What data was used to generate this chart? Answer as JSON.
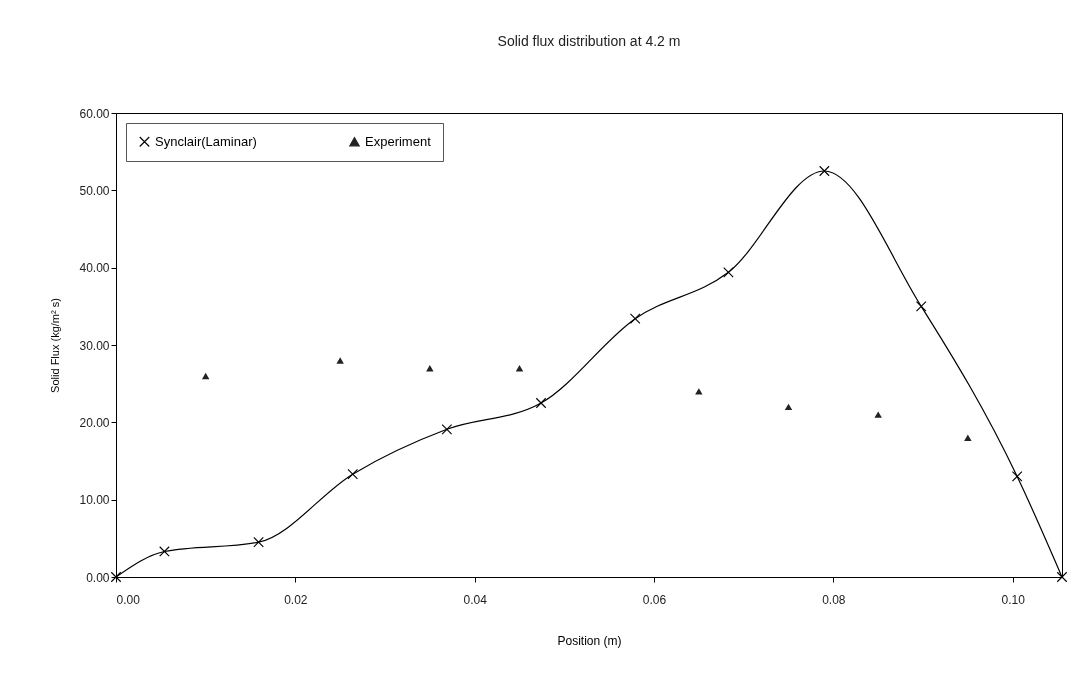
{
  "chart_data": {
    "type": "line",
    "title": "Solid flux distribution at 4.2 m",
    "xlabel": "Position (m)",
    "ylabel": "Solid Flux (kg/m² s)",
    "xlim": [
      0,
      0.1055
    ],
    "ylim": [
      0,
      60
    ],
    "xticks": [
      {
        "value": 0,
        "label": "0.00"
      },
      {
        "value": 0.02,
        "label": "0.02"
      },
      {
        "value": 0.04,
        "label": "0.04"
      },
      {
        "value": 0.06,
        "label": "0.06"
      },
      {
        "value": 0.08,
        "label": "0.08"
      },
      {
        "value": 0.1,
        "label": "0.10"
      }
    ],
    "yticks": [
      {
        "value": 0,
        "label": "0.00"
      },
      {
        "value": 10,
        "label": "10.00"
      },
      {
        "value": 20,
        "label": "20.00"
      },
      {
        "value": 30,
        "label": "30.00"
      },
      {
        "value": 40,
        "label": "40.00"
      },
      {
        "value": 50,
        "label": "50.00"
      },
      {
        "value": 60,
        "label": "60.00"
      }
    ],
    "grid": false,
    "legend": "top left",
    "line_style": "solid",
    "series": [
      {
        "name": "Synclair(Laminar)",
        "marker": "cross",
        "color": "#000000",
        "x": [
          0,
          0.0054,
          0.0159,
          0.0264,
          0.0369,
          0.0474,
          0.0579,
          0.0683,
          0.079,
          0.0898,
          0.1005,
          0.1055
        ],
        "values": [
          0,
          3.3,
          4.5,
          13.3,
          19.1,
          22.5,
          33.4,
          39.4,
          52.5,
          35.0,
          13.0,
          0
        ]
      },
      {
        "name": "Experiment",
        "type": "scatter",
        "marker": "triangle",
        "color": "#222222",
        "x": [
          0.01,
          0.025,
          0.035,
          0.045,
          0.065,
          0.075,
          0.085,
          0.095
        ],
        "values": [
          26,
          28,
          27,
          27,
          24,
          22,
          21,
          18
        ]
      }
    ]
  }
}
